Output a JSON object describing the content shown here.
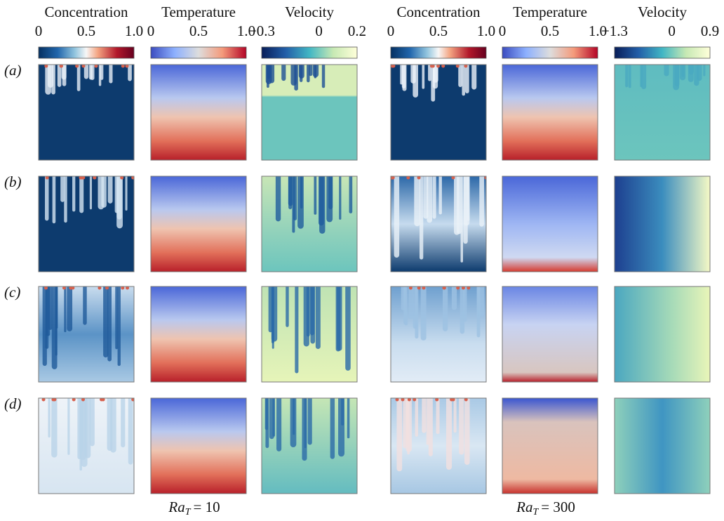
{
  "groups": [
    {
      "colorbars": [
        {
          "title": "Concentration",
          "ticks": [
            "0",
            "0.5",
            "1.0"
          ]
        },
        {
          "title": "Temperature",
          "ticks": [
            "0",
            "0.5",
            "1.0"
          ]
        },
        {
          "title": "Velocity",
          "ticks": [
            "−0.3",
            "0",
            "0.2"
          ]
        }
      ],
      "label": {
        "var": "Ra",
        "sub": "T",
        "rest": "= 10"
      }
    },
    {
      "colorbars": [
        {
          "title": "Concentration",
          "ticks": [
            "0",
            "0.5",
            "1.0"
          ]
        },
        {
          "title": "Temperature",
          "ticks": [
            "0",
            "0.5",
            "1.0"
          ]
        },
        {
          "title": "Velocity",
          "ticks": [
            "−1.3",
            "0",
            "0.9"
          ]
        }
      ],
      "label": {
        "var": "Ra",
        "sub": "T",
        "rest": "= 300"
      }
    }
  ],
  "rows": [
    "(a)",
    "(b)",
    "(c)",
    "(d)"
  ]
}
